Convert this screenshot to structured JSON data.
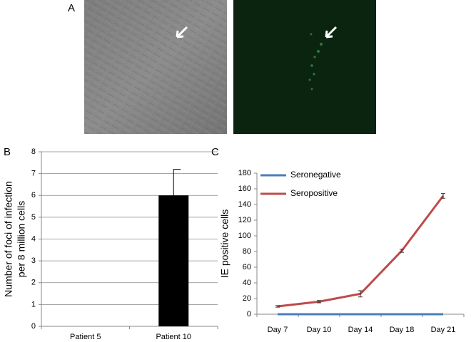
{
  "panel_labels": [
    "A",
    "B",
    "C"
  ],
  "chart_data": [
    {
      "type": "bar",
      "y_label": [
        "Number of foci of infection",
        "per 8 million cells"
      ],
      "categories": [
        "Patient 5",
        "Patient 10"
      ],
      "values": [
        0,
        6
      ],
      "errors": [
        null,
        1.2
      ],
      "color": "#000000",
      "ylim": [
        0,
        8
      ],
      "yticks": [
        0,
        1,
        2,
        3,
        4,
        5,
        6,
        7,
        8
      ],
      "grid": true
    },
    {
      "type": "line",
      "y_label": "IE positive cells",
      "categories": [
        "Day 7",
        "Day 10",
        "Day 14",
        "Day 18",
        "Day 21"
      ],
      "series": [
        {
          "name": "Seronegative",
          "color": "#4a7ebb",
          "values": [
            0,
            0,
            0,
            0,
            0
          ],
          "errors": [
            null,
            null,
            null,
            null,
            null
          ]
        },
        {
          "name": "Seropositive",
          "color": "#be4b48",
          "values": [
            10,
            16,
            26,
            81,
            151
          ],
          "errors": [
            1,
            1.5,
            4,
            2,
            3
          ]
        }
      ],
      "ylim": [
        0,
        180
      ],
      "yticks": [
        0,
        20,
        40,
        60,
        80,
        100,
        120,
        140,
        160,
        180
      ],
      "grid": false,
      "legend": "top-left"
    }
  ]
}
